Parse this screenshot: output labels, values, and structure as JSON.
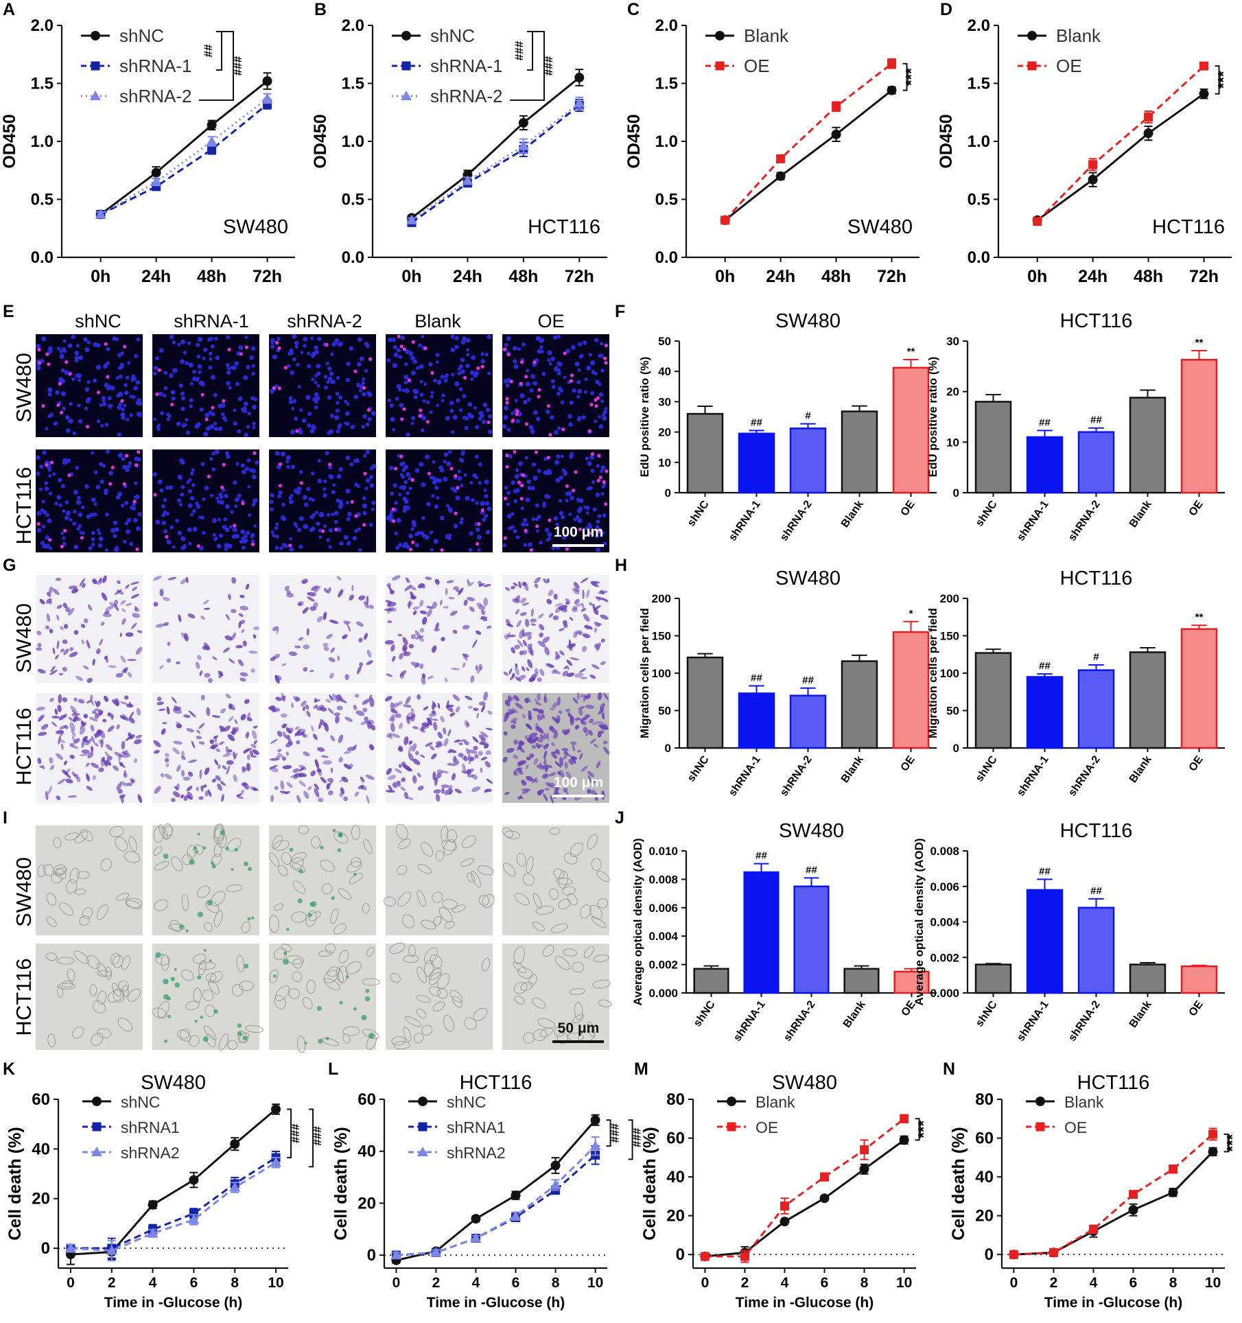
{
  "colors": {
    "black": "#111111",
    "navy": "#1424a8",
    "periwinkle": "#7b86e6",
    "gray": "#7f7f7f",
    "blue": "#0a14f0",
    "lightblue": "#5a5af5",
    "salmon": "#f58a8a",
    "red": "#e81c1c",
    "red_line": "#e82020",
    "fluor_bg": "#06031f",
    "fluor_nuc": "#2a2ad6",
    "fluor_edu": "#e035d8",
    "stain_bg": "#f2f1f6",
    "stain_cell": "#6a3fb5",
    "sa_bg": "#d8d8d5",
    "sa_green": "#2f9a6a"
  },
  "panel_letters": {
    "A": "A",
    "B": "B",
    "C": "C",
    "D": "D",
    "E": "E",
    "F": "F",
    "G": "G",
    "H": "H",
    "I": "I",
    "J": "J",
    "K": "K",
    "L": "L",
    "M": "M",
    "N": "N"
  },
  "micrographs": {
    "columns": [
      "shNC",
      "shRNA-1",
      "shRNA-2",
      "Blank",
      "OE"
    ],
    "row_labels": {
      "sw": "SW480",
      "hct": "HCT116"
    },
    "scale_bar_edu": "100 μm",
    "scale_bar_migration": "100 μm",
    "scale_bar_senescence": "50 μm"
  },
  "chart_data": [
    {
      "id": "A",
      "type": "line",
      "x": [
        "0h",
        "24h",
        "48h",
        "72h"
      ],
      "ylabel": "OD450",
      "ylim": [
        0,
        2.0
      ],
      "yticks": [
        0.0,
        0.5,
        1.0,
        1.5,
        2.0
      ],
      "annotation": "SW480",
      "series": [
        {
          "name": "shNC",
          "values": [
            0.37,
            0.73,
            1.14,
            1.52
          ],
          "err": [
            0.02,
            0.05,
            0.04,
            0.07
          ],
          "color": "black",
          "marker": "circle",
          "dash": "solid"
        },
        {
          "name": "shRNA-1",
          "values": [
            0.37,
            0.61,
            0.93,
            1.32
          ],
          "err": [
            0.02,
            0.03,
            0.04,
            0.04
          ],
          "color": "navy",
          "marker": "square",
          "dash": "dashed"
        },
        {
          "name": "shRNA-2",
          "values": [
            0.37,
            0.65,
            1.0,
            1.37
          ],
          "err": [
            0.02,
            0.03,
            0.04,
            0.04
          ],
          "color": "periwinkle",
          "marker": "triangle",
          "dash": "dotted"
        }
      ],
      "sig": [
        "##",
        "###"
      ]
    },
    {
      "id": "B",
      "type": "line",
      "x": [
        "0h",
        "24h",
        "48h",
        "72h"
      ],
      "ylabel": "OD450",
      "ylim": [
        0,
        2.0
      ],
      "yticks": [
        0.0,
        0.5,
        1.0,
        1.5,
        2.0
      ],
      "annotation": "HCT116",
      "series": [
        {
          "name": "shNC",
          "values": [
            0.34,
            0.71,
            1.16,
            1.55
          ],
          "err": [
            0.02,
            0.04,
            0.06,
            0.07
          ],
          "color": "black",
          "marker": "circle",
          "dash": "solid"
        },
        {
          "name": "shRNA-1",
          "values": [
            0.3,
            0.64,
            0.93,
            1.31
          ],
          "err": [
            0.02,
            0.03,
            0.06,
            0.05
          ],
          "color": "navy",
          "marker": "square",
          "dash": "dashed"
        },
        {
          "name": "shRNA-2",
          "values": [
            0.32,
            0.66,
            0.96,
            1.33
          ],
          "err": [
            0.02,
            0.03,
            0.06,
            0.05
          ],
          "color": "periwinkle",
          "marker": "triangle",
          "dash": "dotted"
        }
      ],
      "sig": [
        "###",
        "###"
      ]
    },
    {
      "id": "C",
      "type": "line",
      "x": [
        "0h",
        "24h",
        "48h",
        "72h"
      ],
      "ylabel": "OD450",
      "ylim": [
        0,
        2.0
      ],
      "yticks": [
        0.0,
        0.5,
        1.0,
        1.5,
        2.0
      ],
      "annotation": "SW480",
      "series": [
        {
          "name": "Blank",
          "values": [
            0.32,
            0.7,
            1.06,
            1.44
          ],
          "err": [
            0.02,
            0.03,
            0.06,
            0.03
          ],
          "color": "black",
          "marker": "circle",
          "dash": "solid"
        },
        {
          "name": "OE",
          "values": [
            0.32,
            0.85,
            1.3,
            1.67
          ],
          "err": [
            0.02,
            0.03,
            0.04,
            0.04
          ],
          "color": "red_line",
          "marker": "square",
          "dash": "dashed"
        }
      ],
      "sig": [
        "***"
      ]
    },
    {
      "id": "D",
      "type": "line",
      "x": [
        "0h",
        "24h",
        "48h",
        "72h"
      ],
      "ylabel": "OD450",
      "ylim": [
        0,
        2.0
      ],
      "yticks": [
        0.0,
        0.5,
        1.0,
        1.5,
        2.0
      ],
      "annotation": "HCT116",
      "series": [
        {
          "name": "Blank",
          "values": [
            0.32,
            0.67,
            1.07,
            1.41
          ],
          "err": [
            0.02,
            0.06,
            0.06,
            0.04
          ],
          "color": "black",
          "marker": "circle",
          "dash": "solid"
        },
        {
          "name": "OE",
          "values": [
            0.31,
            0.8,
            1.21,
            1.65
          ],
          "err": [
            0.02,
            0.05,
            0.05,
            0.03
          ],
          "color": "red_line",
          "marker": "square",
          "dash": "dashed"
        }
      ],
      "sig": [
        "***"
      ]
    },
    {
      "id": "F1",
      "type": "bar",
      "title": "SW480",
      "categories": [
        "shNC",
        "shRNA-1",
        "shRNA-2",
        "Blank",
        "OE"
      ],
      "values": [
        26,
        19.5,
        21.2,
        26.8,
        41.2
      ],
      "err": [
        2.5,
        1.0,
        1.5,
        1.8,
        2.7
      ],
      "labels": [
        "",
        "##",
        "#",
        "",
        "**"
      ],
      "colors": [
        "gray",
        "blue",
        "lightblue",
        "gray",
        "salmon"
      ],
      "edges": [
        "black",
        "blue",
        "blue",
        "black",
        "red"
      ],
      "ylabel": "EdU positive ratio (%)",
      "ylim": [
        0,
        50
      ],
      "yticks": [
        0,
        10,
        20,
        30,
        40,
        50
      ]
    },
    {
      "id": "F2",
      "type": "bar",
      "title": "HCT116",
      "categories": [
        "shNC",
        "shRNA-1",
        "shRNA-2",
        "Blank",
        "OE"
      ],
      "values": [
        18,
        11,
        12,
        18.8,
        26.3
      ],
      "err": [
        1.4,
        1.3,
        0.8,
        1.5,
        1.8
      ],
      "labels": [
        "",
        "##",
        "##",
        "",
        "**"
      ],
      "colors": [
        "gray",
        "blue",
        "lightblue",
        "gray",
        "salmon"
      ],
      "edges": [
        "black",
        "blue",
        "blue",
        "black",
        "red"
      ],
      "ylabel": "EdU positive ratio (%)",
      "ylim": [
        0,
        30
      ],
      "yticks": [
        0,
        10,
        20,
        30
      ]
    },
    {
      "id": "H1",
      "type": "bar",
      "title": "SW480",
      "categories": [
        "shNC",
        "shRNA-1",
        "shRNA-2",
        "Blank",
        "OE"
      ],
      "values": [
        121,
        73,
        70,
        116,
        155
      ],
      "err": [
        5,
        10,
        10,
        8,
        14
      ],
      "labels": [
        "",
        "##",
        "##",
        "",
        "*"
      ],
      "colors": [
        "gray",
        "blue",
        "lightblue",
        "gray",
        "salmon"
      ],
      "edges": [
        "black",
        "blue",
        "blue",
        "black",
        "red"
      ],
      "ylabel": "Migration cells per field",
      "ylim": [
        0,
        200
      ],
      "yticks": [
        0,
        50,
        100,
        150,
        200
      ]
    },
    {
      "id": "H2",
      "type": "bar",
      "title": "HCT116",
      "categories": [
        "shNC",
        "shRNA-1",
        "shRNA-2",
        "Blank",
        "OE"
      ],
      "values": [
        127,
        95,
        104,
        128,
        159
      ],
      "err": [
        5,
        4,
        7,
        6,
        5
      ],
      "labels": [
        "",
        "##",
        "#",
        "",
        "**"
      ],
      "colors": [
        "gray",
        "blue",
        "lightblue",
        "gray",
        "salmon"
      ],
      "edges": [
        "black",
        "blue",
        "blue",
        "black",
        "red"
      ],
      "ylabel": "Migration cells per field",
      "ylim": [
        0,
        200
      ],
      "yticks": [
        0,
        50,
        100,
        150,
        200
      ]
    },
    {
      "id": "J1",
      "type": "bar",
      "title": "SW480",
      "categories": [
        "shNC",
        "shRNA-1",
        "shRNA-2",
        "Blank",
        "OE"
      ],
      "values": [
        0.0017,
        0.0085,
        0.0075,
        0.0017,
        0.0015
      ],
      "err": [
        0.0002,
        0.0006,
        0.0006,
        0.0002,
        0.0002
      ],
      "labels": [
        "",
        "##",
        "##",
        "",
        ""
      ],
      "colors": [
        "gray",
        "blue",
        "lightblue",
        "gray",
        "salmon"
      ],
      "edges": [
        "black",
        "blue",
        "blue",
        "black",
        "red"
      ],
      "ylabel": "Average optical density (AOD)",
      "ylim": [
        0,
        0.01
      ],
      "yticks": [
        0.0,
        0.002,
        0.004,
        0.006,
        0.008,
        0.01
      ],
      "yfmt": 3
    },
    {
      "id": "J2",
      "type": "bar",
      "title": "HCT116",
      "categories": [
        "shNC",
        "shRNA-1",
        "shRNA-2",
        "Blank",
        "OE"
      ],
      "values": [
        0.0016,
        0.0058,
        0.0048,
        0.0016,
        0.0015
      ],
      "err": [
        5e-05,
        0.0006,
        0.0005,
        0.0001,
        5e-05
      ],
      "labels": [
        "",
        "##",
        "##",
        "",
        ""
      ],
      "colors": [
        "gray",
        "blue",
        "lightblue",
        "gray",
        "salmon"
      ],
      "edges": [
        "black",
        "blue",
        "blue",
        "black",
        "red"
      ],
      "ylabel": "Average optical density (AOD)",
      "ylim": [
        0,
        0.008
      ],
      "yticks": [
        0.0,
        0.002,
        0.004,
        0.006,
        0.008
      ],
      "yfmt": 3
    },
    {
      "id": "K",
      "type": "line",
      "title": "SW480",
      "x": [
        0,
        2,
        4,
        6,
        8,
        10
      ],
      "xlabel": "Time in -Glucose (h)",
      "ylabel": "Cell death (%)",
      "ylim": [
        -8,
        60
      ],
      "yticks": [
        0,
        20,
        40,
        60
      ],
      "series": [
        {
          "name": "shNC",
          "values": [
            -2.5,
            -1.5,
            17.5,
            27.5,
            42,
            56
          ],
          "err": [
            4,
            3,
            1.5,
            3,
            2.5,
            2
          ],
          "color": "black",
          "marker": "circle",
          "dash": "solid"
        },
        {
          "name": "shRNA1",
          "values": [
            0,
            0,
            7.5,
            14,
            26,
            36.5
          ],
          "err": [
            1.5,
            4,
            2,
            2,
            2.5,
            2.5
          ],
          "color": "navy",
          "marker": "square",
          "dash": "dashed"
        },
        {
          "name": "shRNA2",
          "values": [
            0,
            -1,
            6,
            11.5,
            24.5,
            34.5
          ],
          "err": [
            1.5,
            4,
            1.5,
            2,
            2,
            2
          ],
          "color": "periwinkle",
          "marker": "triangle",
          "dash": "dashed"
        }
      ],
      "sig": [
        "###",
        "###"
      ]
    },
    {
      "id": "L",
      "type": "line",
      "title": "HCT116",
      "x": [
        0,
        2,
        4,
        6,
        8,
        10
      ],
      "xlabel": "Time in -Glucose (h)",
      "ylabel": "Cell death (%)",
      "ylim": [
        -5,
        60
      ],
      "yticks": [
        0,
        20,
        40,
        60
      ],
      "series": [
        {
          "name": "shNC",
          "values": [
            -2,
            1.5,
            14,
            23,
            34.5,
            52
          ],
          "err": [
            1,
            1,
            1,
            1.5,
            3,
            2
          ],
          "color": "black",
          "marker": "circle",
          "dash": "solid"
        },
        {
          "name": "shRNA1",
          "values": [
            0,
            1,
            6.5,
            14.5,
            25,
            38.5
          ],
          "err": [
            1,
            1,
            1,
            1.5,
            1.5,
            3.5
          ],
          "color": "navy",
          "marker": "square",
          "dash": "dashed"
        },
        {
          "name": "shRNA2",
          "values": [
            0,
            1,
            6.5,
            15,
            27,
            42
          ],
          "err": [
            1,
            1,
            1,
            1.5,
            2,
            3.5
          ],
          "color": "periwinkle",
          "marker": "triangle",
          "dash": "dashed"
        }
      ],
      "sig": [
        "###",
        "###"
      ]
    },
    {
      "id": "M",
      "type": "line",
      "title": "SW480",
      "x": [
        0,
        2,
        4,
        6,
        8,
        10
      ],
      "xlabel": "Time in -Glucose (h)",
      "ylabel": "Cell death (%)",
      "ylim": [
        -7,
        80
      ],
      "yticks": [
        0,
        20,
        40,
        60,
        80
      ],
      "series": [
        {
          "name": "Blank",
          "values": [
            -1,
            1,
            17,
            29,
            44,
            59
          ],
          "err": [
            1,
            3,
            1,
            1,
            2.5,
            2
          ],
          "color": "black",
          "marker": "circle",
          "dash": "solid"
        },
        {
          "name": "OE",
          "values": [
            -1,
            -1,
            25,
            40,
            54,
            70
          ],
          "err": [
            1,
            3,
            4,
            2,
            5,
            2
          ],
          "color": "red_line",
          "marker": "square",
          "dash": "dashed"
        }
      ],
      "sig": [
        "***"
      ]
    },
    {
      "id": "N",
      "type": "line",
      "title": "HCT116",
      "x": [
        0,
        2,
        4,
        6,
        8,
        10
      ],
      "xlabel": "Time in -Glucose (h)",
      "ylabel": "Cell death (%)",
      "ylim": [
        -7,
        80
      ],
      "yticks": [
        0,
        20,
        40,
        60,
        80
      ],
      "series": [
        {
          "name": "Blank",
          "values": [
            0,
            1,
            12,
            23,
            32,
            53
          ],
          "err": [
            1,
            1,
            3,
            3,
            2,
            2
          ],
          "color": "black",
          "marker": "circle",
          "dash": "solid"
        },
        {
          "name": "OE",
          "values": [
            0,
            1,
            13,
            31,
            44,
            62
          ],
          "err": [
            1,
            1,
            2,
            1.5,
            2,
            3
          ],
          "color": "red_line",
          "marker": "square",
          "dash": "dashed"
        }
      ],
      "sig": [
        "***"
      ]
    }
  ]
}
